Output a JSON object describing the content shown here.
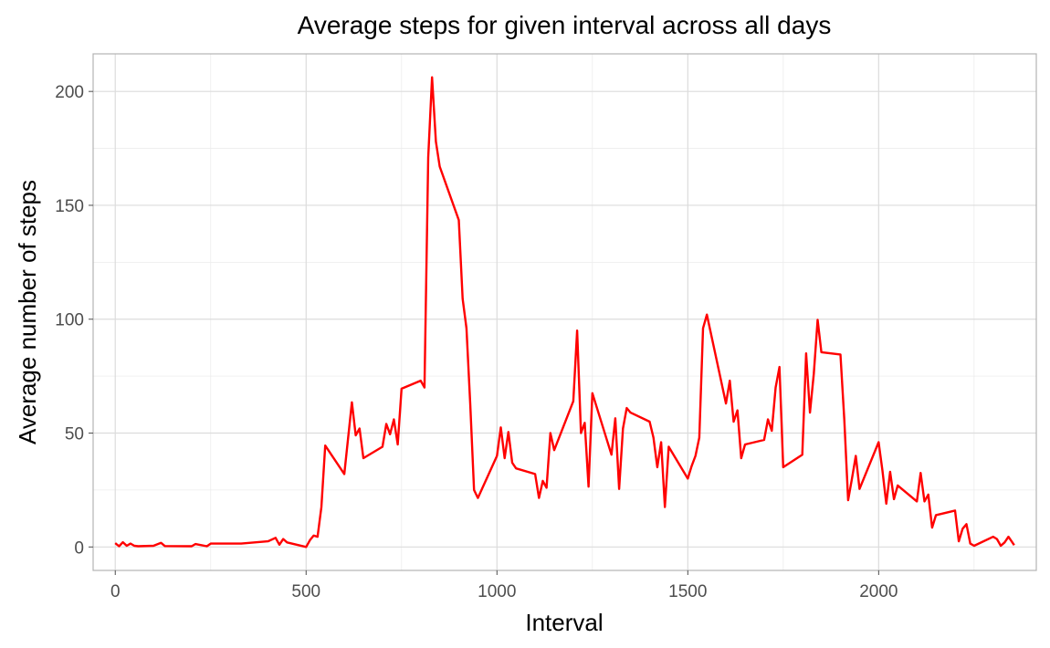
{
  "chart_data": {
    "type": "line",
    "title": "Average steps for given interval across all days",
    "xlabel": "Interval",
    "ylabel": "Average number of steps",
    "xlim": [
      -58,
      2413
    ],
    "ylim": [
      -10.3,
      216.5
    ],
    "xticks": [
      0,
      500,
      1000,
      1500,
      2000
    ],
    "yticks": [
      0,
      50,
      100,
      150,
      200
    ],
    "xtick_labels": [
      "0",
      "500",
      "1000",
      "1500",
      "2000"
    ],
    "ytick_labels": [
      "0",
      "50",
      "100",
      "150",
      "200"
    ],
    "grid": true,
    "legend": "none",
    "series_color": "#ff0000",
    "x": [
      0,
      10,
      20,
      30,
      40,
      50,
      60,
      100,
      120,
      130,
      200,
      210,
      240,
      250,
      330,
      400,
      420,
      430,
      440,
      450,
      500,
      510,
      520,
      530,
      540,
      550,
      600,
      620,
      630,
      640,
      650,
      700,
      710,
      720,
      730,
      740,
      750,
      800,
      810,
      820,
      830,
      840,
      850,
      900,
      910,
      920,
      930,
      940,
      950,
      1000,
      1010,
      1020,
      1030,
      1040,
      1050,
      1100,
      1110,
      1120,
      1130,
      1140,
      1150,
      1200,
      1210,
      1220,
      1230,
      1240,
      1250,
      1300,
      1310,
      1320,
      1330,
      1340,
      1350,
      1400,
      1410,
      1420,
      1430,
      1440,
      1450,
      1500,
      1510,
      1520,
      1530,
      1540,
      1550,
      1600,
      1610,
      1620,
      1630,
      1640,
      1650,
      1700,
      1710,
      1720,
      1730,
      1740,
      1750,
      1800,
      1810,
      1820,
      1830,
      1840,
      1850,
      1900,
      1910,
      1920,
      1930,
      1940,
      1950,
      2000,
      2010,
      2020,
      2030,
      2040,
      2050,
      2100,
      2110,
      2120,
      2130,
      2140,
      2150,
      2200,
      2210,
      2220,
      2230,
      2240,
      2250,
      2300,
      2310,
      2320,
      2330,
      2340,
      2355
    ],
    "y": [
      1.7,
      0.3,
      2.1,
      0.5,
      1.5,
      0.5,
      0.3,
      0.5,
      1.8,
      0.4,
      0.3,
      1.3,
      0.3,
      1.5,
      1.5,
      2.5,
      4.0,
      1.0,
      3.5,
      2.0,
      0,
      3.0,
      5.0,
      4.5,
      17.5,
      44.5,
      32.0,
      63.5,
      49.0,
      52.0,
      39.0,
      44.0,
      54.0,
      49.5,
      56.0,
      45.0,
      69.5,
      73.0,
      70.0,
      171.0,
      206.2,
      178.0,
      167.0,
      143.5,
      109.0,
      96.0,
      63.0,
      25.0,
      21.5,
      40.0,
      52.5,
      39.0,
      50.5,
      37.0,
      34.5,
      32.0,
      21.5,
      29.0,
      26.0,
      50.0,
      42.5,
      64.0,
      95.0,
      50.0,
      54.5,
      26.5,
      67.5,
      40.5,
      56.5,
      25.5,
      52.0,
      61.0,
      59.0,
      55.0,
      48.0,
      35.0,
      46.0,
      17.5,
      44.0,
      30.0,
      35.5,
      40.0,
      48.0,
      96.0,
      102.0,
      63.0,
      73.0,
      55.0,
      60.0,
      39.0,
      45.0,
      47.0,
      56.0,
      51.0,
      70.0,
      79.0,
      35.0,
      40.5,
      85.0,
      59.0,
      76.0,
      99.7,
      85.5,
      84.5,
      56.0,
      20.5,
      30.0,
      40.0,
      25.5,
      46.0,
      33.5,
      19.0,
      33.0,
      21.0,
      27.0,
      20.0,
      32.5,
      20.0,
      23.0,
      8.5,
      14.0,
      16.0,
      2.5,
      8.0,
      10.0,
      1.5,
      0.5,
      4.5,
      3.5,
      0.5,
      2.0,
      4.5,
      0.8
    ]
  }
}
